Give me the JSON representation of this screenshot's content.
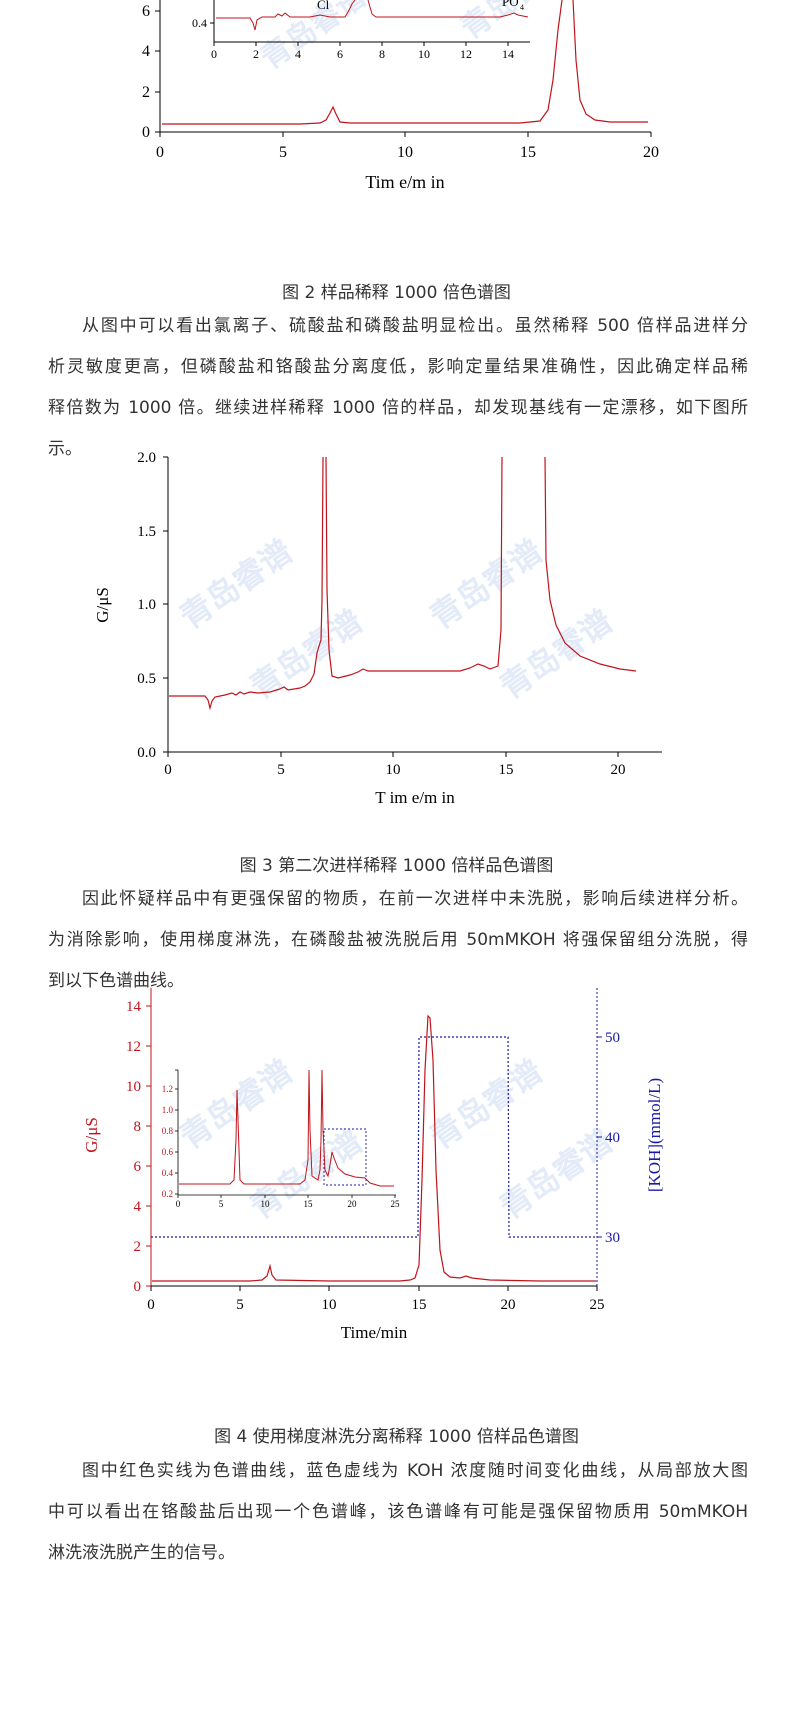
{
  "figure2": {
    "caption": "图 2 样品稀释 1000 倍色谱图",
    "xlabel": "Tim e/m in",
    "x_ticks": [
      "0",
      "5",
      "10",
      "15",
      "20"
    ],
    "y_ticks": [
      "0",
      "2",
      "4",
      "6"
    ],
    "inset": {
      "x_ticks": [
        "0",
        "2",
        "4",
        "6",
        "8",
        "10",
        "12",
        "14"
      ],
      "y_tick": "0.4",
      "labels": [
        "Cl",
        "PO"
      ],
      "subscript": "4"
    }
  },
  "paragraph1": {
    "lines": [
      "从图中可以看出氯离子、硫酸盐和磷酸盐明显检出。虽然稀释 500 倍样品进样分",
      "析灵敏度更高，但磷酸盐和铬酸盐分离度低，影响定量结果准确性，因此确定样品稀",
      "释倍数为 1000 倍。继续进样稀释 1000 倍的样品，却发现基线有一定漂移，如下图所",
      "示。"
    ]
  },
  "figure3": {
    "caption": "图 3 第二次进样稀释 1000 倍样品色谱图",
    "xlabel": "T im e/m in",
    "ylabel": "G/μS",
    "x_ticks": [
      "0",
      "5",
      "10",
      "15",
      "20"
    ],
    "y_ticks": [
      "0.0",
      "0.5",
      "1.0",
      "1.5",
      "2.0"
    ]
  },
  "paragraph2": {
    "lines": [
      "因此怀疑样品中有更强保留的物质，在前一次进样中未洗脱，影响后续进样分析。",
      "为消除影响，使用梯度淋洗，在磷酸盐被洗脱后用 50mMKOH 将强保留组分洗脱，得",
      "到以下色谱曲线。"
    ]
  },
  "figure4": {
    "caption": "图 4 使用梯度淋洗分离稀释 1000 倍样品色谱图",
    "xlabel": "Time/min",
    "ylabel_left": "G/μS",
    "ylabel_right": "[KOH](mmol/L)",
    "x_ticks": [
      "0",
      "5",
      "10",
      "15",
      "20",
      "25"
    ],
    "y_ticks_left": [
      "0",
      "2",
      "4",
      "6",
      "8",
      "10",
      "12",
      "14"
    ],
    "y_ticks_right": [
      "30",
      "40",
      "50"
    ],
    "inset": {
      "x_ticks": [
        "0",
        "5",
        "10",
        "15",
        "20",
        "25"
      ],
      "y_ticks": [
        "0.2",
        "0.4",
        "0.6",
        "0.8",
        "1.0",
        "1.2"
      ]
    }
  },
  "paragraph3": {
    "lines": [
      "图中红色实线为色谱曲线，蓝色虚线为 KOH 浓度随时间变化曲线，从局部放大图",
      "中可以看出在铬酸盐后出现一个色谱峰，该色谱峰有可能是强保留物质用 50mMKOH",
      "淋洗液洗脱产生的信号。"
    ]
  },
  "watermark": "青岛睿谱",
  "colors": {
    "signal": "#c0141c",
    "koh": "#1a1aa8",
    "axis": "#000000"
  }
}
